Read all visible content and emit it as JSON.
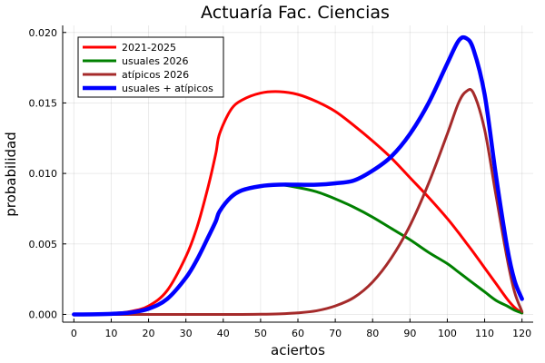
{
  "chart_data": {
    "type": "line",
    "title": "Actuaría Fac. Ciencias",
    "xlabel": "aciertos",
    "ylabel": "probabilidad",
    "xlim": [
      -3,
      123
    ],
    "ylim": [
      -0.00055,
      0.0205
    ],
    "xticks": [
      0,
      10,
      20,
      30,
      40,
      50,
      60,
      70,
      80,
      90,
      100,
      110,
      120
    ],
    "yticks": [
      0.0,
      0.005,
      0.01,
      0.015,
      0.02
    ],
    "ytick_labels": [
      "0.000",
      "0.005",
      "0.010",
      "0.015",
      "0.020"
    ],
    "grid": true,
    "legend_position": "top-left",
    "x": [
      0,
      5,
      10,
      15,
      20,
      25,
      30,
      33,
      36,
      38,
      39,
      42,
      45,
      50,
      55,
      60,
      65,
      70,
      75,
      80,
      85,
      90,
      95,
      100,
      103,
      105,
      107,
      110,
      113,
      116,
      118,
      120
    ],
    "series": [
      {
        "name": "2021-2025",
        "color": "#ff0000",
        "width": 3,
        "values": [
          0.0,
          1e-05,
          7e-05,
          0.0002,
          0.0006,
          0.0017,
          0.0041,
          0.0062,
          0.0091,
          0.0114,
          0.0128,
          0.0145,
          0.0152,
          0.0157,
          0.0158,
          0.0156,
          0.0151,
          0.0144,
          0.0134,
          0.0123,
          0.0111,
          0.0097,
          0.0083,
          0.0068,
          0.0058,
          0.0051,
          0.0044,
          0.0033,
          0.0022,
          0.0011,
          0.0005,
          0.0001
        ]
      },
      {
        "name": "usuales 2026",
        "color": "#008000",
        "width": 3,
        "values": [
          0.0,
          5e-06,
          4e-05,
          0.00013,
          0.0004,
          0.0011,
          0.0026,
          0.0039,
          0.0055,
          0.0066,
          0.0073,
          0.0083,
          0.0088,
          0.0091,
          0.0092,
          0.009,
          0.0087,
          0.0082,
          0.0076,
          0.0069,
          0.0061,
          0.0053,
          0.0044,
          0.0036,
          0.003,
          0.0026,
          0.0022,
          0.0016,
          0.001,
          0.0006,
          0.0003,
          0.0001
        ]
      },
      {
        "name": "atípicos 2026",
        "color": "#a52a2a",
        "width": 3,
        "values": [
          0.0,
          0.0,
          0.0,
          0.0,
          0.0,
          0.0,
          0.0,
          0.0,
          0.0,
          0.0,
          0.0,
          0.0,
          0.0,
          1e-05,
          4e-05,
          0.00011,
          0.00026,
          0.0006,
          0.0012,
          0.0023,
          0.004,
          0.0063,
          0.0093,
          0.0128,
          0.015,
          0.0158,
          0.0157,
          0.0131,
          0.0085,
          0.004,
          0.0016,
          0.0002
        ]
      },
      {
        "name": "usuales + atípicos",
        "color": "#0000ff",
        "width": 4.5,
        "values": [
          0.0,
          5e-06,
          4e-05,
          0.00013,
          0.0004,
          0.0011,
          0.0026,
          0.0039,
          0.0055,
          0.0066,
          0.0073,
          0.0083,
          0.0088,
          0.0091,
          0.0092,
          0.0092,
          0.0092,
          0.0093,
          0.0095,
          0.0102,
          0.0112,
          0.0128,
          0.015,
          0.0178,
          0.0194,
          0.0196,
          0.0188,
          0.0156,
          0.0099,
          0.0048,
          0.0024,
          0.0011
        ]
      }
    ]
  }
}
